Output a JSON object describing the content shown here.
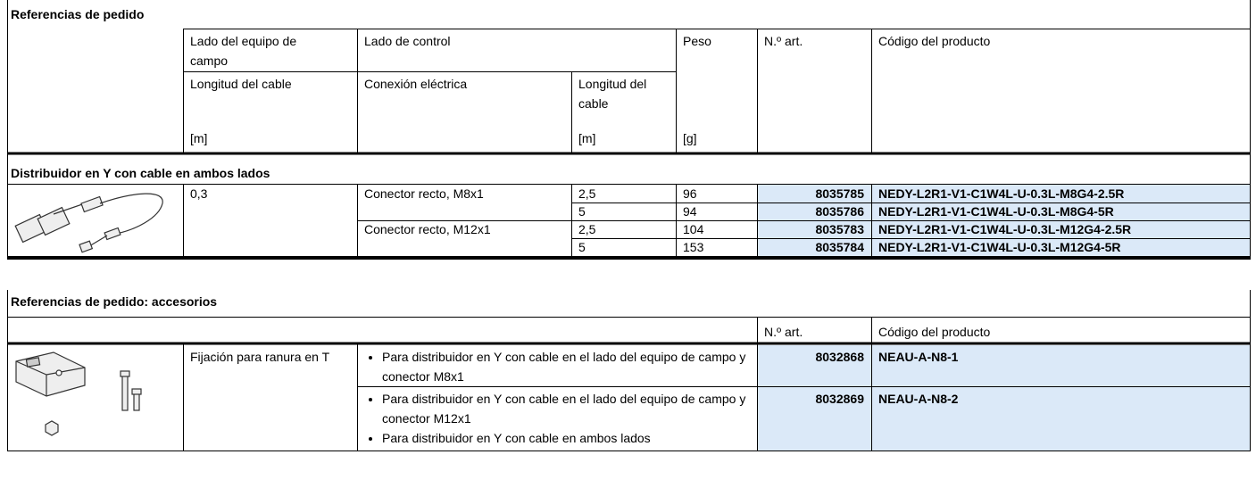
{
  "order_table": {
    "title": "Referencias de pedido",
    "header": {
      "field_side": "Lado del equipo de campo",
      "control_side": "Lado de control",
      "weight": "Peso",
      "part_no": "N.º art.",
      "product_code": "Código del producto",
      "cable_length": "Longitud del cable",
      "electrical_connection": "Conexión eléctrica",
      "control_cable_length": "Longitud del cable",
      "cable_length_unit": "[m]",
      "control_cable_length_unit": "[m]",
      "weight_unit": "[g]"
    },
    "section": "Distribuidor en Y con cable en ambos lados",
    "field_cable_length": "0,3",
    "connections": [
      "Conector recto, M8x1",
      "Conector recto, M12x1"
    ],
    "rows": [
      {
        "cable_length": "2,5",
        "weight": 96,
        "part_no": "8035785",
        "product_code": "NEDY-L2R1-V1-C1W4L-U-0.3L-M8G4-2.5R"
      },
      {
        "cable_length": "5",
        "weight": 94,
        "part_no": "8035786",
        "product_code": "NEDY-L2R1-V1-C1W4L-U-0.3L-M8G4-5R"
      },
      {
        "cable_length": "2,5",
        "weight": 104,
        "part_no": "8035783",
        "product_code": "NEDY-L2R1-V1-C1W4L-U-0.3L-M12G4-2.5R"
      },
      {
        "cable_length": "5",
        "weight": 153,
        "part_no": "8035784",
        "product_code": "NEDY-L2R1-V1-C1W4L-U-0.3L-M12G4-5R"
      }
    ]
  },
  "accessories_table": {
    "title": "Referencias de pedido: accesorios",
    "header": {
      "part_no": "N.º art.",
      "product_code": "Código del producto"
    },
    "item": "Fijación para ranura en T",
    "rows": [
      {
        "descriptions": [
          "Para distribuidor en Y con cable en el lado del equipo de campo y conector M8x1"
        ],
        "part_no": "8032868",
        "product_code": "NEAU-A-N8-1"
      },
      {
        "descriptions": [
          "Para distribuidor en Y con cable en el lado del equipo de campo y conector M12x1",
          "Para distribuidor en Y con cable en ambos lados"
        ],
        "part_no": "8032869",
        "product_code": "NEAU-A-N8-2"
      }
    ]
  }
}
